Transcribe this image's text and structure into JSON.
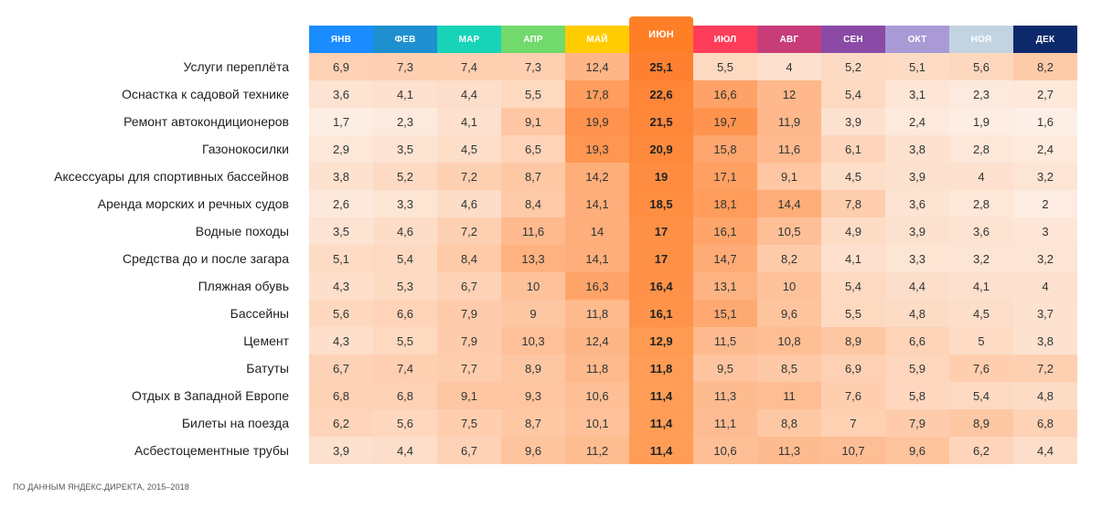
{
  "footnote": "ПО ДАННЫМ ЯНДЕКС.ДИРЕКТА, 2015–2018",
  "chart_data": {
    "type": "heatmap",
    "columns": [
      "ЯНВ",
      "ФЕВ",
      "МАР",
      "АПР",
      "МАЙ",
      "ИЮН",
      "ИЮЛ",
      "АВГ",
      "СЕН",
      "ОКТ",
      "НОЯ",
      "ДЕК"
    ],
    "column_colors": [
      "#1a8cff",
      "#1e90d0",
      "#17d4b8",
      "#72d96c",
      "#ffcc00",
      "#ff7f27",
      "#ff3d5a",
      "#c63d7a",
      "#8a4aa6",
      "#a99ad6",
      "#c2d4e2",
      "#0c2a6b"
    ],
    "highlight_column": 5,
    "rows": [
      {
        "label": "Услуги переплёта",
        "values": [
          6.9,
          7.3,
          7.4,
          7.3,
          12.4,
          25.1,
          5.5,
          4,
          5.2,
          5.1,
          5.6,
          8.2
        ],
        "display": [
          "6,9",
          "7,3",
          "7,4",
          "7,3",
          "12,4",
          "25,1",
          "5,5",
          "4",
          "5,2",
          "5,1",
          "5,6",
          "8,2"
        ]
      },
      {
        "label": "Оснастка к садовой технике",
        "values": [
          3.6,
          4.1,
          4.4,
          5.5,
          17.8,
          22.6,
          16.6,
          12,
          5.4,
          3.1,
          2.3,
          2.7
        ],
        "display": [
          "3,6",
          "4,1",
          "4,4",
          "5,5",
          "17,8",
          "22,6",
          "16,6",
          "12",
          "5,4",
          "3,1",
          "2,3",
          "2,7"
        ]
      },
      {
        "label": "Ремонт автокондиционеров",
        "values": [
          1.7,
          2.3,
          4.1,
          9.1,
          19.9,
          21.5,
          19.7,
          11.9,
          3.9,
          2.4,
          1.9,
          1.6
        ],
        "display": [
          "1,7",
          "2,3",
          "4,1",
          "9,1",
          "19,9",
          "21,5",
          "19,7",
          "11,9",
          "3,9",
          "2,4",
          "1,9",
          "1,6"
        ]
      },
      {
        "label": "Газонокосилки",
        "values": [
          2.9,
          3.5,
          4.5,
          6.5,
          19.3,
          20.9,
          15.8,
          11.6,
          6.1,
          3.8,
          2.8,
          2.4
        ],
        "display": [
          "2,9",
          "3,5",
          "4,5",
          "6,5",
          "19,3",
          "20,9",
          "15,8",
          "11,6",
          "6,1",
          "3,8",
          "2,8",
          "2,4"
        ]
      },
      {
        "label": "Аксессуары для спортивных бассейнов",
        "values": [
          3.8,
          5.2,
          7.2,
          8.7,
          14.2,
          19,
          17.1,
          9.1,
          4.5,
          3.9,
          4,
          3.2
        ],
        "display": [
          "3,8",
          "5,2",
          "7,2",
          "8,7",
          "14,2",
          "19",
          "17,1",
          "9,1",
          "4,5",
          "3,9",
          "4",
          "3,2"
        ]
      },
      {
        "label": "Аренда морских и речных судов",
        "values": [
          2.6,
          3.3,
          4.6,
          8.4,
          14.1,
          18.5,
          18.1,
          14.4,
          7.8,
          3.6,
          2.8,
          2
        ],
        "display": [
          "2,6",
          "3,3",
          "4,6",
          "8,4",
          "14,1",
          "18,5",
          "18,1",
          "14,4",
          "7,8",
          "3,6",
          "2,8",
          "2"
        ]
      },
      {
        "label": "Водные походы",
        "values": [
          3.5,
          4.6,
          7.2,
          11.6,
          14,
          17,
          16.1,
          10.5,
          4.9,
          3.9,
          3.6,
          3
        ],
        "display": [
          "3,5",
          "4,6",
          "7,2",
          "11,6",
          "14",
          "17",
          "16,1",
          "10,5",
          "4,9",
          "3,9",
          "3,6",
          "3"
        ]
      },
      {
        "label": "Средства до и после загара",
        "values": [
          5.1,
          5.4,
          8.4,
          13.3,
          14.1,
          17,
          14.7,
          8.2,
          4.1,
          3.3,
          3.2,
          3.2
        ],
        "display": [
          "5,1",
          "5,4",
          "8,4",
          "13,3",
          "14,1",
          "17",
          "14,7",
          "8,2",
          "4,1",
          "3,3",
          "3,2",
          "3,2"
        ]
      },
      {
        "label": "Пляжная обувь",
        "values": [
          4.3,
          5.3,
          6.7,
          10,
          16.3,
          16.4,
          13.1,
          10,
          5.4,
          4.4,
          4.1,
          4
        ],
        "display": [
          "4,3",
          "5,3",
          "6,7",
          "10",
          "16,3",
          "16,4",
          "13,1",
          "10",
          "5,4",
          "4,4",
          "4,1",
          "4"
        ]
      },
      {
        "label": "Бассейны",
        "values": [
          5.6,
          6.6,
          7.9,
          9,
          11.8,
          16.1,
          15.1,
          9.6,
          5.5,
          4.8,
          4.5,
          3.7
        ],
        "display": [
          "5,6",
          "6,6",
          "7,9",
          "9",
          "11,8",
          "16,1",
          "15,1",
          "9,6",
          "5,5",
          "4,8",
          "4,5",
          "3,7"
        ]
      },
      {
        "label": "Цемент",
        "values": [
          4.3,
          5.5,
          7.9,
          10.3,
          12.4,
          12.9,
          11.5,
          10.8,
          8.9,
          6.6,
          5,
          3.8
        ],
        "display": [
          "4,3",
          "5,5",
          "7,9",
          "10,3",
          "12,4",
          "12,9",
          "11,5",
          "10,8",
          "8,9",
          "6,6",
          "5",
          "3,8"
        ]
      },
      {
        "label": "Батуты",
        "values": [
          6.7,
          7.4,
          7.7,
          8.9,
          11.8,
          11.8,
          9.5,
          8.5,
          6.9,
          5.9,
          7.6,
          7.2
        ],
        "display": [
          "6,7",
          "7,4",
          "7,7",
          "8,9",
          "11,8",
          "11,8",
          "9,5",
          "8,5",
          "6,9",
          "5,9",
          "7,6",
          "7,2"
        ]
      },
      {
        "label": "Отдых в Западной Европе",
        "values": [
          6.8,
          6.8,
          9.1,
          9.3,
          10.6,
          11.4,
          11.3,
          11,
          7.6,
          5.8,
          5.4,
          4.8
        ],
        "display": [
          "6,8",
          "6,8",
          "9,1",
          "9,3",
          "10,6",
          "11,4",
          "11,3",
          "11",
          "7,6",
          "5,8",
          "5,4",
          "4,8"
        ]
      },
      {
        "label": "Билеты на поезда",
        "values": [
          6.2,
          5.6,
          7.5,
          8.7,
          10.1,
          11.4,
          11.1,
          8.8,
          7,
          7.9,
          8.9,
          6.8
        ],
        "display": [
          "6,2",
          "5,6",
          "7,5",
          "8,7",
          "10,1",
          "11,4",
          "11,1",
          "8,8",
          "7",
          "7,9",
          "8,9",
          "6,8"
        ]
      },
      {
        "label": "Асбестоцементные трубы",
        "values": [
          3.9,
          4.4,
          6.7,
          9.6,
          11.2,
          11.4,
          10.6,
          11.3,
          10.7,
          9.6,
          6.2,
          4.4
        ],
        "display": [
          "3,9",
          "4,4",
          "6,7",
          "9,6",
          "11,2",
          "11,4",
          "10,6",
          "11,3",
          "10,7",
          "9,6",
          "6,2",
          "4,4"
        ]
      }
    ]
  }
}
